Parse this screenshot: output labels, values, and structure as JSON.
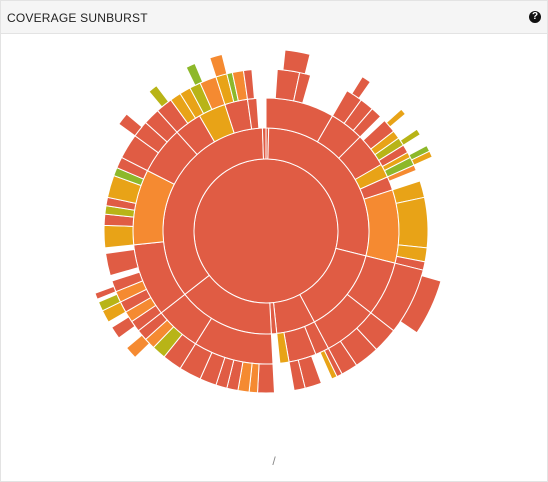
{
  "panel": {
    "title": "COVERAGE SUNBURST",
    "help_icon": "question-circle-icon",
    "help_glyph": "?"
  },
  "breadcrumb": {
    "path": "/"
  },
  "colors": {
    "red": "#e05c44",
    "orange": "#f58a31",
    "amber": "#e8a317",
    "olive": "#b8b417",
    "green": "#8db82a",
    "separator": "#ffffff"
  },
  "chart_data": {
    "type": "sunburst",
    "rings": [
      {
        "level": 0,
        "segments": [
          {
            "start": 0,
            "end": 360,
            "color": "red"
          }
        ]
      },
      {
        "level": 1,
        "segments": [
          {
            "start": 0,
            "end": 1.5,
            "color": "red"
          },
          {
            "start": 1.5,
            "end": 104,
            "color": "red"
          },
          {
            "start": 104,
            "end": 152,
            "color": "red"
          },
          {
            "start": 152,
            "end": 174,
            "color": "red"
          },
          {
            "start": 174,
            "end": 177,
            "color": "red"
          },
          {
            "start": 177,
            "end": 232,
            "color": "red"
          },
          {
            "start": 232,
            "end": 358,
            "color": "red"
          },
          {
            "start": 358,
            "end": 360,
            "color": "red"
          }
        ]
      },
      {
        "level": 2,
        "segments": [
          {
            "start": 0,
            "end": 30,
            "color": "red"
          },
          {
            "start": 30,
            "end": 45,
            "color": "red"
          },
          {
            "start": 45,
            "end": 60,
            "color": "red"
          },
          {
            "start": 60,
            "end": 66,
            "color": "amber"
          },
          {
            "start": 66,
            "end": 72,
            "color": "red"
          },
          {
            "start": 72,
            "end": 104,
            "color": "orange"
          },
          {
            "start": 104,
            "end": 128,
            "color": "red"
          },
          {
            "start": 128,
            "end": 152,
            "color": "red"
          },
          {
            "start": 152,
            "end": 158,
            "color": "red"
          },
          {
            "start": 158,
            "end": 170,
            "color": "red"
          },
          {
            "start": 170,
            "end": 174,
            "color": "amber"
          },
          {
            "start": 177,
            "end": 212,
            "color": "red"
          },
          {
            "start": 212,
            "end": 232,
            "color": "red"
          },
          {
            "start": 232,
            "end": 264,
            "color": "red"
          },
          {
            "start": 264,
            "end": 297,
            "color": "orange"
          },
          {
            "start": 297,
            "end": 318,
            "color": "red"
          },
          {
            "start": 318,
            "end": 330,
            "color": "red"
          },
          {
            "start": 330,
            "end": 342,
            "color": "amber"
          },
          {
            "start": 342,
            "end": 352,
            "color": "red"
          },
          {
            "start": 352,
            "end": 356,
            "color": "red"
          }
        ]
      },
      {
        "level": 3,
        "segments": [
          {
            "start": 4,
            "end": 12,
            "color": "red"
          },
          {
            "start": 12,
            "end": 16,
            "color": "red"
          },
          {
            "start": 30,
            "end": 36,
            "color": "red"
          },
          {
            "start": 36,
            "end": 41,
            "color": "red"
          },
          {
            "start": 41,
            "end": 45,
            "color": "red"
          },
          {
            "start": 47,
            "end": 52,
            "color": "red"
          },
          {
            "start": 52,
            "end": 55,
            "color": "amber"
          },
          {
            "start": 55,
            "end": 58,
            "color": "olive"
          },
          {
            "start": 58,
            "end": 61,
            "color": "red"
          },
          {
            "start": 61,
            "end": 63,
            "color": "amber"
          },
          {
            "start": 63,
            "end": 66,
            "color": "green"
          },
          {
            "start": 66,
            "end": 68,
            "color": "orange"
          },
          {
            "start": 72,
            "end": 78,
            "color": "amber"
          },
          {
            "start": 78,
            "end": 96,
            "color": "amber"
          },
          {
            "start": 96,
            "end": 101,
            "color": "amber"
          },
          {
            "start": 101,
            "end": 104,
            "color": "red"
          },
          {
            "start": 104,
            "end": 128,
            "color": "red"
          },
          {
            "start": 128,
            "end": 137,
            "color": "red"
          },
          {
            "start": 137,
            "end": 146,
            "color": "red"
          },
          {
            "start": 146,
            "end": 152,
            "color": "red"
          },
          {
            "start": 152,
            "end": 154,
            "color": "red"
          },
          {
            "start": 154,
            "end": 156,
            "color": "amber"
          },
          {
            "start": 160,
            "end": 166,
            "color": "red"
          },
          {
            "start": 166,
            "end": 170,
            "color": "red"
          },
          {
            "start": 177,
            "end": 183,
            "color": "red"
          },
          {
            "start": 183,
            "end": 186,
            "color": "orange"
          },
          {
            "start": 186,
            "end": 190,
            "color": "orange"
          },
          {
            "start": 190,
            "end": 194,
            "color": "red"
          },
          {
            "start": 194,
            "end": 198,
            "color": "red"
          },
          {
            "start": 198,
            "end": 204,
            "color": "red"
          },
          {
            "start": 204,
            "end": 212,
            "color": "red"
          },
          {
            "start": 212,
            "end": 219,
            "color": "red"
          },
          {
            "start": 219,
            "end": 224,
            "color": "olive"
          },
          {
            "start": 224,
            "end": 228,
            "color": "orange"
          },
          {
            "start": 228,
            "end": 232,
            "color": "red"
          },
          {
            "start": 232,
            "end": 236,
            "color": "red"
          },
          {
            "start": 236,
            "end": 240,
            "color": "orange"
          },
          {
            "start": 240,
            "end": 244,
            "color": "red"
          },
          {
            "start": 244,
            "end": 248,
            "color": "orange"
          },
          {
            "start": 248,
            "end": 252,
            "color": "red"
          },
          {
            "start": 254,
            "end": 262,
            "color": "red"
          },
          {
            "start": 264,
            "end": 272,
            "color": "amber"
          },
          {
            "start": 272,
            "end": 276,
            "color": "red"
          },
          {
            "start": 276,
            "end": 279,
            "color": "olive"
          },
          {
            "start": 279,
            "end": 282,
            "color": "red"
          },
          {
            "start": 282,
            "end": 290,
            "color": "amber"
          },
          {
            "start": 290,
            "end": 293,
            "color": "green"
          },
          {
            "start": 293,
            "end": 297,
            "color": "red"
          },
          {
            "start": 297,
            "end": 306,
            "color": "red"
          },
          {
            "start": 306,
            "end": 312,
            "color": "red"
          },
          {
            "start": 312,
            "end": 318,
            "color": "red"
          },
          {
            "start": 318,
            "end": 324,
            "color": "red"
          },
          {
            "start": 324,
            "end": 328,
            "color": "amber"
          },
          {
            "start": 328,
            "end": 332,
            "color": "amber"
          },
          {
            "start": 332,
            "end": 336,
            "color": "olive"
          },
          {
            "start": 336,
            "end": 342,
            "color": "orange"
          },
          {
            "start": 342,
            "end": 346,
            "color": "amber"
          },
          {
            "start": 346,
            "end": 348,
            "color": "green"
          },
          {
            "start": 348,
            "end": 352,
            "color": "orange"
          },
          {
            "start": 352,
            "end": 355,
            "color": "red"
          }
        ]
      },
      {
        "level": 4,
        "segments": [
          {
            "start": 6,
            "end": 14,
            "color": "red"
          },
          {
            "start": 32,
            "end": 35,
            "color": "red"
          },
          {
            "start": 48,
            "end": 50,
            "color": "amber"
          },
          {
            "start": 56,
            "end": 58,
            "color": "olive"
          },
          {
            "start": 62,
            "end": 64,
            "color": "green"
          },
          {
            "start": 64,
            "end": 66,
            "color": "amber"
          },
          {
            "start": 106,
            "end": 124,
            "color": "red"
          },
          {
            "start": 226,
            "end": 230,
            "color": "orange"
          },
          {
            "start": 234,
            "end": 238,
            "color": "red"
          },
          {
            "start": 240,
            "end": 244,
            "color": "amber"
          },
          {
            "start": 244,
            "end": 247,
            "color": "olive"
          },
          {
            "start": 248,
            "end": 250,
            "color": "red"
          },
          {
            "start": 306,
            "end": 310,
            "color": "red"
          },
          {
            "start": 320,
            "end": 323,
            "color": "olive"
          },
          {
            "start": 334,
            "end": 337,
            "color": "green"
          },
          {
            "start": 342,
            "end": 346,
            "color": "orange"
          }
        ]
      }
    ],
    "title": "",
    "legend": "none"
  }
}
